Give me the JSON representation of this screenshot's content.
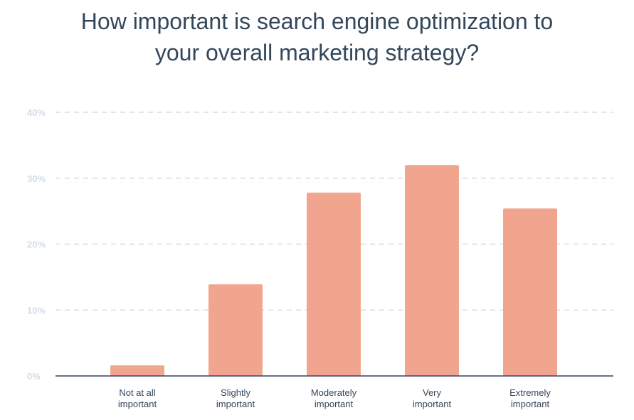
{
  "title_lines": [
    "How important is search engine optimization to",
    "your overall marketing strategy?"
  ],
  "colors": {
    "bar": "#f2a58e",
    "grid": "#cbd6e2",
    "axis": "#33475b",
    "tick": "#d3dce6",
    "title": "#33475b"
  },
  "chart_data": {
    "type": "bar",
    "title": "How important is search engine optimization to your overall marketing strategy?",
    "categories": [
      [
        "Not at all",
        "important"
      ],
      [
        "Slightly",
        "important"
      ],
      [
        "Moderately",
        "important"
      ],
      [
        "Very",
        "important"
      ],
      [
        "Extremely",
        "important"
      ]
    ],
    "values": [
      1.6,
      13.9,
      27.8,
      32.0,
      25.4
    ],
    "yticks": [
      "0%",
      "10%",
      "20%",
      "30%",
      "40%"
    ],
    "ytick_values": [
      0,
      10,
      20,
      30,
      40
    ],
    "ylim": [
      0,
      40
    ],
    "grid": true,
    "legend": "none"
  }
}
